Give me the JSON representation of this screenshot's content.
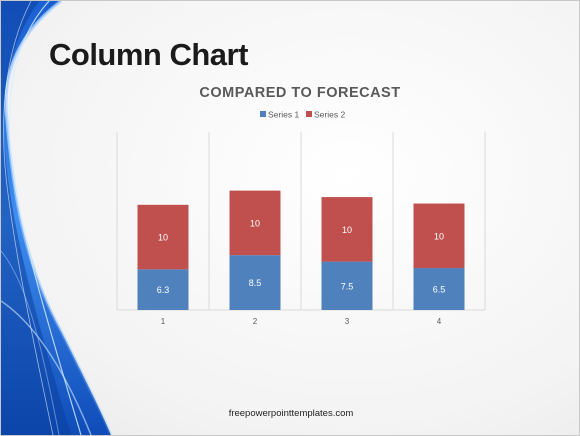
{
  "slide": {
    "title": "Column Chart",
    "footer": "freepowerpointtemplates.com"
  },
  "colors": {
    "series1": "#4f81bd",
    "series2": "#c0504d",
    "grid": "#d9d9d9",
    "title_text": "#595959",
    "label_text": "#ffffff"
  },
  "chart_data": {
    "type": "bar",
    "stacked": true,
    "title": "COMPARED TO FORECAST",
    "categories": [
      "1",
      "2",
      "3",
      "4"
    ],
    "series": [
      {
        "name": "Series 1",
        "values": [
          6.3,
          8.5,
          7.5,
          6.5
        ]
      },
      {
        "name": "Series 2",
        "values": [
          10,
          10,
          10,
          10
        ]
      }
    ],
    "xlabel": "",
    "ylabel": "",
    "ylim": [
      0,
      30
    ],
    "grid": "vertical",
    "legend": "top-center"
  }
}
